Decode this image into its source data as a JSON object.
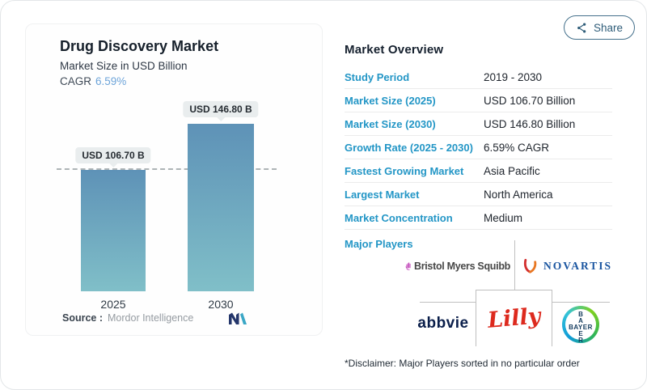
{
  "share": {
    "label": "Share"
  },
  "chart_card": {
    "title": "Drug Discovery Market",
    "subtitle": "Market Size in USD Billion",
    "cagr_label": "CAGR",
    "cagr_value": "6.59%",
    "source_label": "Source :",
    "source_value": "Mordor Intelligence"
  },
  "chart_data": {
    "type": "bar",
    "title": "Drug Discovery Market",
    "ylabel": "Market Size in USD Billion",
    "unit": "USD Billion",
    "categories": [
      "2025",
      "2030"
    ],
    "values": [
      106.7,
      146.8
    ],
    "bar_labels": [
      "USD 106.70 B",
      "USD 146.80 B"
    ],
    "reference_line": 106.7,
    "cagr": "6.59%",
    "bar_gradient_top": "#5e92b7",
    "bar_gradient_bottom": "#80bfc8",
    "legend": "none",
    "grid": "off"
  },
  "overview": {
    "heading": "Market Overview",
    "rows": [
      {
        "label": "Study Period",
        "value": "2019 - 2030"
      },
      {
        "label": "Market Size (2025)",
        "value": "USD 106.70 Billion"
      },
      {
        "label": "Market Size (2030)",
        "value": "USD 146.80 Billion"
      },
      {
        "label": "Growth Rate (2025 - 2030)",
        "value": "6.59% CAGR"
      },
      {
        "label": "Fastest Growing Market",
        "value": "Asia Pacific"
      },
      {
        "label": "Largest Market",
        "value": "North America"
      },
      {
        "label": "Market Concentration",
        "value": "Medium"
      }
    ]
  },
  "major_players": {
    "label": "Major Players",
    "players": [
      "Bristol Myers Squibb",
      "Novartis",
      "AbbVie",
      "Lilly",
      "Bayer"
    ],
    "logos": {
      "bms_text": "Bristol Myers Squibb",
      "novartis_text": "NOVARTIS",
      "abbvie_text": "abbvie",
      "lilly_text": "Lilly",
      "bayer_word": "BAYER",
      "bayer_v1": "B",
      "bayer_v2": "A",
      "bayer_v3": "E",
      "bayer_v4": "R"
    },
    "disclaimer": "*Disclaimer: Major Players sorted in no particular order"
  },
  "colors": {
    "accent_blue": "#2396c6",
    "cagr_blue": "#6da4d9",
    "share_blue": "#2f5d79",
    "heading_navy": "#15202e",
    "bubble_bg": "#e9edee",
    "dashed_line": "#aeb4b6"
  }
}
